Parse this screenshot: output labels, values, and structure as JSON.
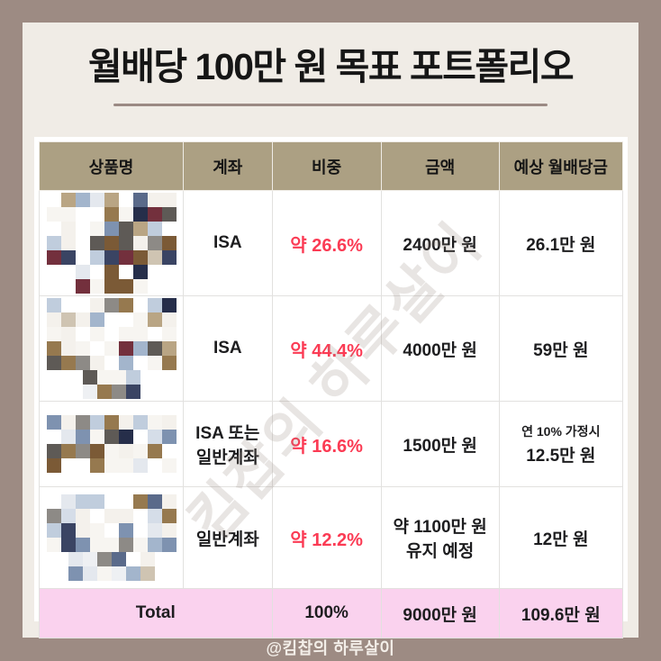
{
  "page": {
    "title": "월배당 100만 원 목표 포트폴리오",
    "watermark": "킴찹의 하루살이",
    "footer": "@킴찹의 하루살이"
  },
  "colors": {
    "background": "#9d8b83",
    "card": "#f0ece6",
    "divider": "#9b8a84",
    "header_bg": "#aca083",
    "total_bg": "#fad2ee",
    "accent_red": "#fb3b54",
    "mosaic_palette": [
      "#ffffff",
      "#f4f1ec",
      "#f7f5f1",
      "#eef0f3",
      "#e4e8ee",
      "#d5dde8",
      "#c0cddd",
      "#a3b5cc",
      "#7e92b0",
      "#5a6a8a",
      "#3a4463",
      "#262e4a",
      "#cfc4b2",
      "#b9a584",
      "#96794f",
      "#7b5a36",
      "#8d8a86",
      "#5e5a56",
      "#73303d"
    ]
  },
  "table": {
    "headers": [
      "상품명",
      "계좌",
      "비중",
      "금액",
      "예상 월배당금"
    ],
    "rows": [
      {
        "product_redacted": true,
        "account": "ISA",
        "weight": "약 26.6%",
        "amount": "2400만 원",
        "dividend": "26.1만 원"
      },
      {
        "product_redacted": true,
        "account": "ISA",
        "weight": "약 44.4%",
        "amount": "4000만 원",
        "dividend": "59만 원"
      },
      {
        "product_redacted": true,
        "account": "ISA 또는\n일반계좌",
        "weight": "약 16.6%",
        "amount": "1500만 원",
        "dividend_note": "연 10% 가정시",
        "dividend": "12.5만 원"
      },
      {
        "product_redacted": true,
        "account": "일반계좌",
        "weight": "약 12.2%",
        "amount": "약 1100만 원\n유지 예정",
        "dividend": "12만 원"
      }
    ],
    "total": {
      "label": "Total",
      "weight": "100%",
      "amount": "9000만 원",
      "dividend": "109.6만 원"
    }
  }
}
